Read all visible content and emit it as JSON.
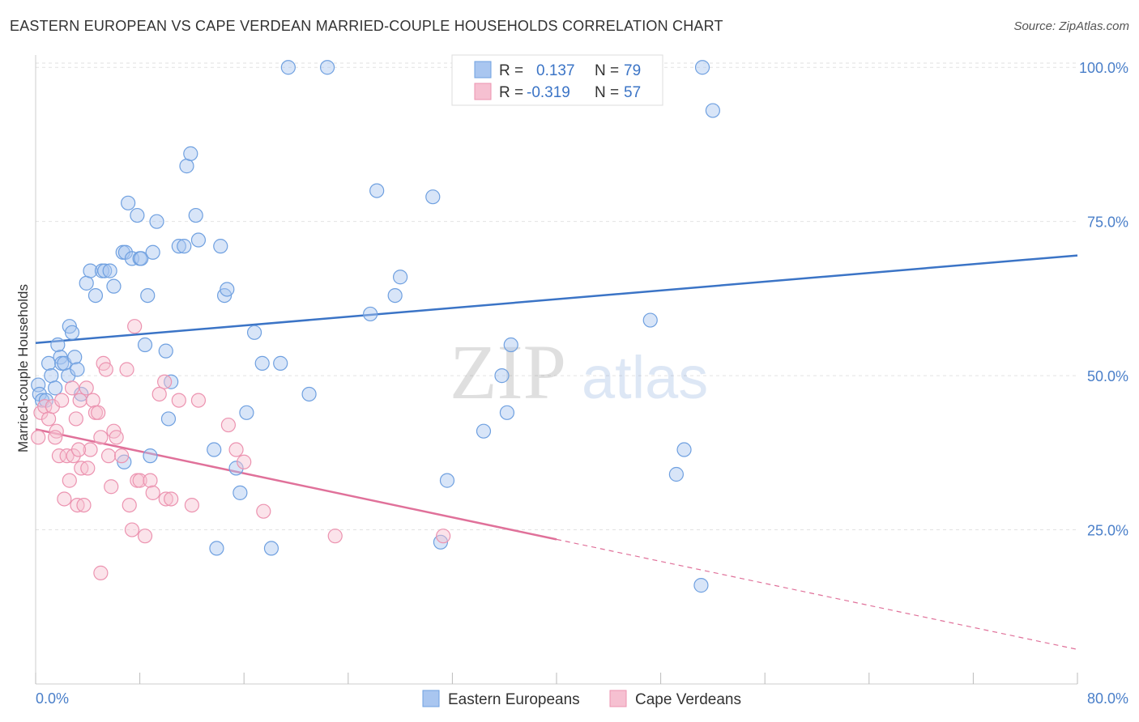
{
  "header": {
    "title": "EASTERN EUROPEAN VS CAPE VERDEAN MARRIED-COUPLE HOUSEHOLDS CORRELATION CHART",
    "source": "Source: ZipAtlas.com"
  },
  "watermark": {
    "zip": "ZIP",
    "atlas": "atlas"
  },
  "legend": {
    "r_label": "R =",
    "n_label": "N =",
    "rows": [
      {
        "r": "0.137",
        "n": "79"
      },
      {
        "r": "-0.319",
        "n": "57"
      }
    ]
  },
  "chart_data": {
    "type": "scatter",
    "title": "EASTERN EUROPEAN VS CAPE VERDEAN MARRIED-COUPLE HOUSEHOLDS CORRELATION CHART",
    "ylabel": "Married-couple Households",
    "xlabel": "",
    "xlim": [
      0,
      80
    ],
    "ylim": [
      0,
      102
    ],
    "x_ticks": [
      "0.0%",
      "80.0%"
    ],
    "y_ticks": [
      {
        "value": 25,
        "label": "25.0%"
      },
      {
        "value": 50,
        "label": "50.0%"
      },
      {
        "value": 75,
        "label": "75.0%"
      },
      {
        "value": 100,
        "label": "100.0%"
      }
    ],
    "grid": "horizontal dashed",
    "series": [
      {
        "name": "Eastern Europeans",
        "color": "#6fa0e0",
        "fill": "#a9c6f0",
        "trend": {
          "x0": 0,
          "y0": 55.3,
          "x1": 80,
          "y1": 69.5,
          "dashed_from": null
        },
        "points": [
          [
            0.2,
            48.5
          ],
          [
            0.3,
            47
          ],
          [
            0.5,
            46
          ],
          [
            0.8,
            46
          ],
          [
            1,
            52
          ],
          [
            1.2,
            50
          ],
          [
            1.5,
            48
          ],
          [
            1.7,
            55
          ],
          [
            1.9,
            53
          ],
          [
            2,
            52
          ],
          [
            2.2,
            52
          ],
          [
            2.5,
            50
          ],
          [
            2.6,
            58
          ],
          [
            2.8,
            57
          ],
          [
            3,
            53
          ],
          [
            3.2,
            51
          ],
          [
            3.5,
            47
          ],
          [
            3.9,
            65
          ],
          [
            4.2,
            67
          ],
          [
            4.6,
            63
          ],
          [
            5.1,
            67
          ],
          [
            5.3,
            67
          ],
          [
            5.7,
            67
          ],
          [
            6,
            64.5
          ],
          [
            6.7,
            70
          ],
          [
            6.9,
            70
          ],
          [
            7.1,
            78
          ],
          [
            7.4,
            69
          ],
          [
            7.8,
            76
          ],
          [
            8,
            69
          ],
          [
            8.1,
            69
          ],
          [
            8.4,
            55
          ],
          [
            8.6,
            63
          ],
          [
            9,
            70
          ],
          [
            9.3,
            75
          ],
          [
            10,
            54
          ],
          [
            10.4,
            49
          ],
          [
            11,
            71
          ],
          [
            11.4,
            71
          ],
          [
            11.6,
            84
          ],
          [
            11.9,
            86
          ],
          [
            12.3,
            76
          ],
          [
            12.5,
            72
          ],
          [
            13.7,
            38
          ],
          [
            14.2,
            71
          ],
          [
            14.5,
            63
          ],
          [
            14.7,
            64
          ],
          [
            15.7,
            31
          ],
          [
            16.2,
            44
          ],
          [
            16.8,
            57
          ],
          [
            17.4,
            52
          ],
          [
            18.8,
            52
          ],
          [
            19.4,
            100
          ],
          [
            21,
            47
          ],
          [
            22.4,
            100
          ],
          [
            25.7,
            60
          ],
          [
            26.2,
            80
          ],
          [
            27.6,
            63
          ],
          [
            28,
            66
          ],
          [
            30.5,
            79
          ],
          [
            31.1,
            23
          ],
          [
            31.6,
            33
          ],
          [
            34.4,
            41
          ],
          [
            35.8,
            50
          ],
          [
            36.2,
            44
          ],
          [
            36.5,
            55
          ],
          [
            37.7,
            100
          ],
          [
            47.2,
            59
          ],
          [
            49.2,
            34
          ],
          [
            49.8,
            38
          ],
          [
            51.1,
            16
          ],
          [
            51.2,
            100
          ],
          [
            52,
            93
          ],
          [
            10.2,
            43
          ],
          [
            8.8,
            37
          ],
          [
            6.8,
            36
          ],
          [
            13.9,
            22
          ],
          [
            15.4,
            35
          ],
          [
            18.1,
            22
          ]
        ]
      },
      {
        "name": "Cape Verdeans",
        "color": "#ec93b0",
        "fill": "#f6c0d1",
        "trend": {
          "x0": 0,
          "y0": 41.3,
          "x1": 80,
          "y1": 5.6,
          "dashed_from": 40
        },
        "points": [
          [
            0.2,
            40
          ],
          [
            0.4,
            44
          ],
          [
            0.7,
            45
          ],
          [
            1,
            43
          ],
          [
            1.3,
            45
          ],
          [
            1.6,
            41
          ],
          [
            1.8,
            37
          ],
          [
            2,
            46
          ],
          [
            2.2,
            30
          ],
          [
            2.4,
            37
          ],
          [
            2.6,
            33
          ],
          [
            2.8,
            48
          ],
          [
            2.9,
            37
          ],
          [
            3.1,
            43
          ],
          [
            3.2,
            29
          ],
          [
            3.4,
            46
          ],
          [
            3.5,
            35
          ],
          [
            3.7,
            29
          ],
          [
            3.9,
            48
          ],
          [
            4,
            35
          ],
          [
            4.2,
            38
          ],
          [
            4.4,
            46
          ],
          [
            4.6,
            44
          ],
          [
            4.8,
            44
          ],
          [
            5,
            40
          ],
          [
            5.2,
            52
          ],
          [
            5.4,
            51
          ],
          [
            5.6,
            37
          ],
          [
            5.8,
            32
          ],
          [
            6,
            41
          ],
          [
            6.2,
            40
          ],
          [
            6.6,
            37
          ],
          [
            7,
            51
          ],
          [
            7.2,
            29
          ],
          [
            7.4,
            25
          ],
          [
            7.6,
            58
          ],
          [
            7.8,
            33
          ],
          [
            8,
            33
          ],
          [
            8.4,
            24
          ],
          [
            8.8,
            33
          ],
          [
            9,
            31
          ],
          [
            9.5,
            47
          ],
          [
            9.9,
            49
          ],
          [
            10,
            30
          ],
          [
            10.4,
            30
          ],
          [
            11,
            46
          ],
          [
            12,
            29
          ],
          [
            12.5,
            46
          ],
          [
            14.8,
            42
          ],
          [
            15.4,
            38
          ],
          [
            16,
            36
          ],
          [
            17.5,
            28
          ],
          [
            23,
            24
          ],
          [
            31.3,
            24
          ],
          [
            5,
            18
          ],
          [
            1.5,
            40
          ],
          [
            3.3,
            38
          ]
        ]
      }
    ]
  },
  "bottom_legend": [
    "Eastern Europeans",
    "Cape Verdeans"
  ]
}
